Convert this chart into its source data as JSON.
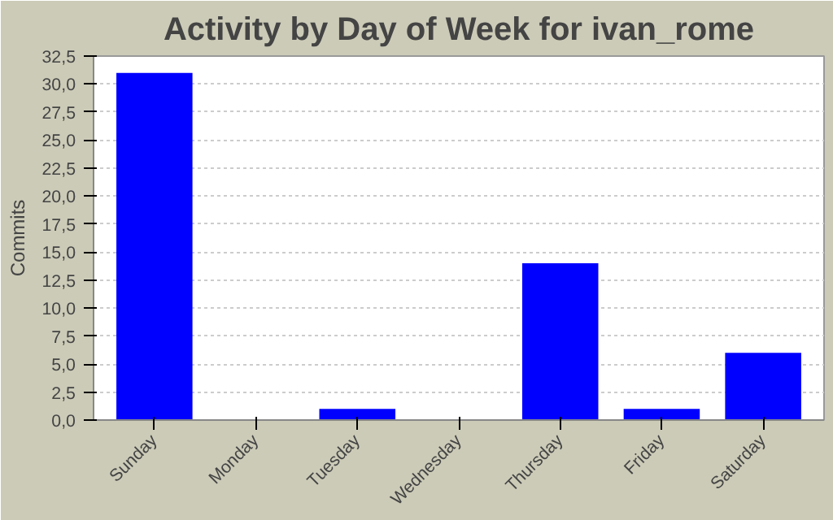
{
  "chart_data": {
    "type": "bar",
    "title": "Activity by Day of Week for ivan_rome",
    "ylabel": "Commits",
    "categories": [
      "Sunday",
      "Monday",
      "Tuesday",
      "Wednesday",
      "Thursday",
      "Friday",
      "Saturday"
    ],
    "values": [
      31,
      0,
      1,
      0,
      14,
      1,
      6
    ],
    "color": "#0000ff",
    "ylim": [
      0,
      32.5
    ],
    "yticks": [
      {
        "value": 0,
        "label": "0,0"
      },
      {
        "value": 2.5,
        "label": "2,5"
      },
      {
        "value": 5,
        "label": "5,0"
      },
      {
        "value": 7.5,
        "label": "7,5"
      },
      {
        "value": 10,
        "label": "10,0"
      },
      {
        "value": 12.5,
        "label": "12,5"
      },
      {
        "value": 15,
        "label": "15,0"
      },
      {
        "value": 17.5,
        "label": "17,5"
      },
      {
        "value": 20,
        "label": "20,0"
      },
      {
        "value": 22.5,
        "label": "22,5"
      },
      {
        "value": 25,
        "label": "25,0"
      },
      {
        "value": 27.5,
        "label": "27,5"
      },
      {
        "value": 30,
        "label": "30,0"
      },
      {
        "value": 32.5,
        "label": "32,5"
      }
    ],
    "grid": "y"
  }
}
